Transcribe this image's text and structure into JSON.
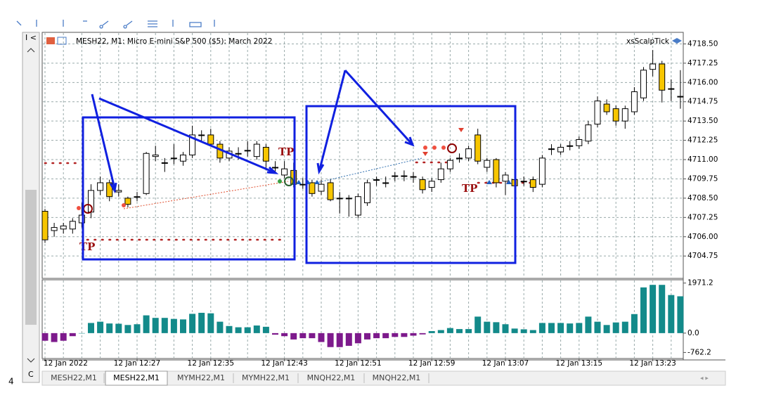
{
  "chart_data": [
    {
      "type": "candlestick",
      "title": "MESH22, M1:  Micro E-mini S&P 500 ($5): March 2022",
      "indicator_label": "xsScalpTick",
      "categories": [
        "12 Jan 2022",
        null,
        null,
        null,
        null,
        null,
        null,
        null,
        null,
        null,
        "12 Jan 12:27",
        null,
        null,
        null,
        null,
        null,
        null,
        null,
        "12 Jan 12:35",
        null,
        null,
        null,
        null,
        null,
        null,
        null,
        "12 Jan 12:43",
        null,
        null,
        null,
        null,
        null,
        null,
        null,
        "12 Jan 12:51",
        null,
        null,
        null,
        null,
        null,
        null,
        null,
        "12 Jan 12:59",
        null,
        null,
        null,
        null,
        null,
        null,
        null,
        "12 Jan 13:07",
        null,
        null,
        null,
        null,
        null,
        null,
        null,
        "12 Jan 13:15",
        null,
        null,
        null,
        null,
        null,
        null,
        null,
        "12 Jan 13:23",
        null,
        null,
        null
      ],
      "open": [
        4707.65,
        4706.4,
        4706.5,
        4706.5,
        4706.9,
        4707.6,
        4709.0,
        4709.5,
        4708.9,
        4708.5,
        4708.55,
        4708.8,
        4711.2,
        4710.8,
        4711.1,
        4710.9,
        4711.3,
        4712.6,
        4712.6,
        4712.0,
        4711.1,
        4711.4,
        4711.6,
        4711.2,
        4711.8,
        4710.5,
        4710.0,
        4710.3,
        4709.4,
        4709.5,
        4708.95,
        4709.5,
        4708.5,
        4708.5,
        4707.4,
        4708.2,
        4709.7,
        4709.5,
        4709.95,
        4709.95,
        4709.9,
        4709.7,
        4709.2,
        4709.7,
        4710.4,
        4711.1,
        4711.1,
        4712.6,
        4710.5,
        4711.0,
        4709.6,
        4709.7,
        4709.6,
        4709.7,
        4709.4,
        4711.7,
        4711.5,
        4711.9,
        4711.9,
        4712.2,
        4713.3,
        4714.6,
        4714.3,
        4713.5,
        4714.1,
        4715.0,
        4716.85,
        4717.2,
        4715.6,
        4715.1
      ],
      "high": [
        4707.8,
        4706.9,
        4706.9,
        4707.2,
        4708.2,
        4709.4,
        4709.9,
        4709.7,
        4709.4,
        4708.6,
        4708.9,
        4711.5,
        4711.9,
        4711.1,
        4712.0,
        4711.5,
        4713.2,
        4712.9,
        4713.0,
        4712.2,
        4711.8,
        4711.8,
        4712.2,
        4712.2,
        4712.0,
        4710.9,
        4710.9,
        4710.8,
        4709.8,
        4709.7,
        4709.7,
        4709.7,
        4708.9,
        4708.7,
        4708.8,
        4709.7,
        4709.9,
        4709.9,
        4710.2,
        4710.3,
        4710.2,
        4709.9,
        4709.8,
        4710.8,
        4711.1,
        4711.4,
        4711.9,
        4713.0,
        4711.1,
        4711.1,
        4710.2,
        4709.9,
        4709.9,
        4709.9,
        4711.3,
        4712.0,
        4712.0,
        4712.2,
        4712.5,
        4713.5,
        4715.1,
        4714.9,
        4714.5,
        4714.5,
        4715.7,
        4717.0,
        4718.1,
        4717.4,
        4716.2,
        4716.8
      ],
      "low": [
        4705.6,
        4706.0,
        4706.2,
        4706.2,
        4706.6,
        4707.2,
        4708.7,
        4708.3,
        4708.6,
        4707.9,
        4708.3,
        4708.7,
        4710.9,
        4710.2,
        4710.7,
        4710.6,
        4711.1,
        4712.2,
        4711.9,
        4710.8,
        4710.9,
        4711.0,
        4711.2,
        4711.0,
        4710.3,
        4710.2,
        4709.8,
        4709.2,
        4709.1,
        4708.6,
        4708.7,
        4708.3,
        4707.5,
        4707.3,
        4707.2,
        4708.0,
        4709.3,
        4709.2,
        4709.6,
        4709.6,
        4709.5,
        4708.8,
        4708.9,
        4709.5,
        4710.2,
        4710.8,
        4710.9,
        4710.7,
        4710.2,
        4709.2,
        4708.7,
        4708.8,
        4709.3,
        4708.9,
        4709.2,
        4711.3,
        4711.3,
        4711.6,
        4711.7,
        4712.0,
        4713.1,
        4713.9,
        4713.2,
        4713.0,
        4713.9,
        4714.8,
        4716.4,
        4714.7,
        4714.8,
        4714.3
      ],
      "close": [
        4705.8,
        4706.6,
        4706.7,
        4707.0,
        4707.4,
        4709.0,
        4709.5,
        4708.6,
        4709.0,
        4708.1,
        4708.6,
        4711.4,
        4711.3,
        4710.8,
        4711.1,
        4711.3,
        4712.6,
        4712.6,
        4712.0,
        4711.1,
        4711.55,
        4711.4,
        4711.6,
        4712.0,
        4710.9,
        4710.5,
        4710.4,
        4709.4,
        4709.4,
        4708.8,
        4709.4,
        4708.4,
        4708.5,
        4708.5,
        4708.6,
        4709.5,
        4709.7,
        4709.5,
        4709.95,
        4709.95,
        4709.9,
        4709.05,
        4709.6,
        4710.4,
        4710.95,
        4711.1,
        4711.7,
        4710.9,
        4710.95,
        4709.5,
        4710.0,
        4709.3,
        4709.6,
        4709.2,
        4711.1,
        4711.7,
        4711.8,
        4711.9,
        4712.3,
        4713.25,
        4714.8,
        4714.1,
        4713.5,
        4714.3,
        4715.4,
        4716.8,
        4717.2,
        4715.5,
        4715.6,
        4715.1
      ],
      "up_color": "#ffffff",
      "down_color": "#f7c600",
      "ylim": [
        4703.3,
        4719.25
      ],
      "yticks": [
        {
          "value": 4718.5,
          "label": "4718.50"
        },
        {
          "value": 4717.25,
          "label": "4717.25"
        },
        {
          "value": 4716,
          "label": "4716.00"
        },
        {
          "value": 4714.75,
          "label": "4714.75"
        },
        {
          "value": 4713.5,
          "label": "4713.50"
        },
        {
          "value": 4712.25,
          "label": "4712.25"
        },
        {
          "value": 4711,
          "label": "4711.00"
        },
        {
          "value": 4709.75,
          "label": "4709.75"
        },
        {
          "value": 4708.5,
          "label": "4708.50"
        },
        {
          "value": 4707.25,
          "label": "4707.25"
        },
        {
          "value": 4706,
          "label": "4706.00"
        },
        {
          "value": 4704.75,
          "label": "4704.75"
        }
      ],
      "grid": true,
      "annotations": [
        "TP",
        "TP",
        "TP"
      ]
    },
    {
      "type": "bar",
      "values": [
        -300,
        -350,
        -300,
        -120,
        0,
        400,
        450,
        380,
        370,
        320,
        350,
        700,
        600,
        600,
        560,
        540,
        760,
        800,
        780,
        450,
        280,
        230,
        230,
        300,
        250,
        -60,
        -120,
        -250,
        -200,
        -200,
        -350,
        -550,
        -550,
        -500,
        -400,
        -250,
        -200,
        -200,
        -150,
        -150,
        -100,
        -50,
        80,
        120,
        200,
        160,
        160,
        650,
        450,
        430,
        350,
        180,
        150,
        120,
        400,
        400,
        400,
        380,
        400,
        650,
        450,
        320,
        420,
        450,
        750,
        1800,
        1900,
        1900,
        1500,
        1450
      ],
      "positive_color": "#138a8a",
      "negative_color": "#7d1a8c",
      "ylim": [
        -1000,
        2100
      ],
      "yticks": [
        1971.2,
        {
          "value": 0,
          "label": "0.0"
        },
        -762.2
      ]
    }
  ],
  "tabs": [
    "MESH22,M1",
    "MESH22,M1",
    "MYMH22,M1",
    "MYMH22,M1",
    "MNQH22,M1",
    "MNQH22,M1"
  ],
  "side_label": "4"
}
